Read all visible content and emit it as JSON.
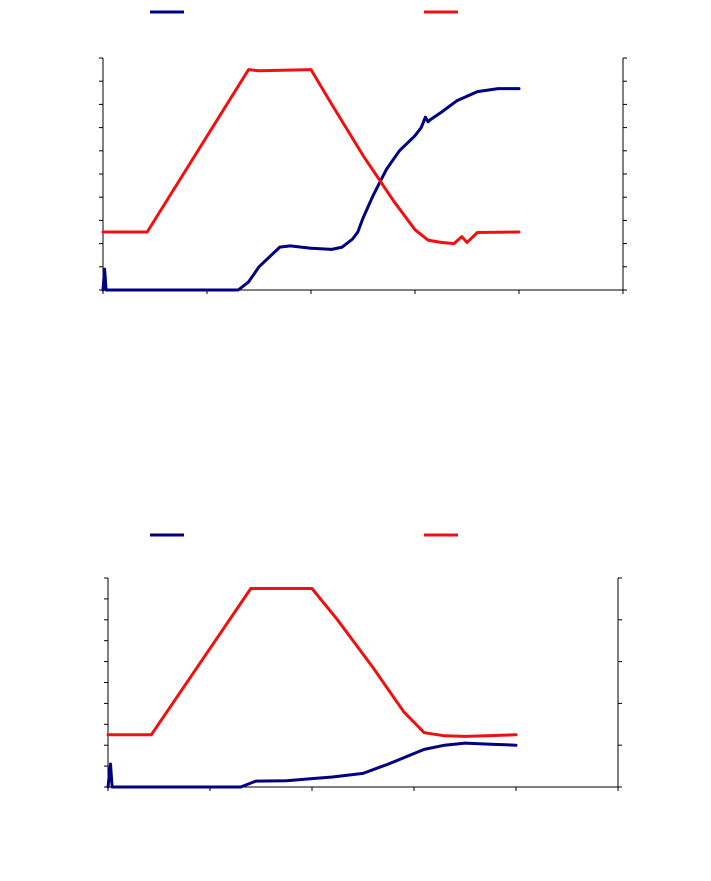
{
  "colors": {
    "blue": "#000080",
    "red": "#ee1111"
  },
  "chart_data": [
    {
      "type": "line",
      "legend_placement": "top",
      "grid": false,
      "xlim": [
        0,
        1
      ],
      "ylim_left": [
        0,
        100
      ],
      "ylim_right": [
        0,
        100
      ],
      "left_ticks": 10,
      "right_ticks": 10,
      "x_ticks": 5,
      "series": [
        {
          "color": "#000080",
          "axis": "left",
          "x": [
            0,
            0.003,
            0.006,
            0.01,
            0.1,
            0.2,
            0.26,
            0.28,
            0.3,
            0.34,
            0.36,
            0.4,
            0.44,
            0.46,
            0.48,
            0.49,
            0.5,
            0.52,
            0.545,
            0.57,
            0.6,
            0.612,
            0.62,
            0.625,
            0.63,
            0.65,
            0.68,
            0.72,
            0.76,
            0.8
          ],
          "y": [
            0,
            9,
            0,
            0,
            0,
            0,
            0,
            3.5,
            10,
            18.5,
            19,
            18,
            17.5,
            18.5,
            22,
            25,
            31,
            41,
            52,
            60,
            66.5,
            70,
            74.5,
            72.5,
            73.5,
            76.5,
            81.5,
            85.5,
            86.8,
            86.8
          ]
        },
        {
          "color": "#ee1111",
          "axis": "right",
          "x": [
            0,
            0.085,
            0.28,
            0.3,
            0.4,
            0.44,
            0.5,
            0.56,
            0.6,
            0.625,
            0.65,
            0.675,
            0.69,
            0.7,
            0.72,
            0.8
          ],
          "y": [
            25,
            25,
            95,
            94.5,
            95,
            80,
            58,
            38,
            26,
            21.5,
            20.5,
            20,
            23,
            20.5,
            24.8,
            25
          ]
        }
      ]
    },
    {
      "type": "line",
      "legend_placement": "top",
      "grid": false,
      "xlim": [
        0,
        1
      ],
      "ylim_left": [
        0,
        100
      ],
      "ylim_right": [
        0,
        100
      ],
      "left_ticks": 10,
      "right_ticks": 5,
      "x_ticks": 5,
      "series": [
        {
          "color": "#000080",
          "axis": "left",
          "x": [
            0,
            0.005,
            0.008,
            0.012,
            0.1,
            0.2,
            0.26,
            0.29,
            0.35,
            0.4,
            0.44,
            0.5,
            0.55,
            0.59,
            0.62,
            0.66,
            0.7,
            0.75,
            0.8
          ],
          "y": [
            0,
            11,
            0,
            0,
            0,
            0,
            0,
            2.8,
            3,
            4,
            4.8,
            6.5,
            11,
            15,
            18,
            20,
            21,
            20.5,
            20
          ]
        },
        {
          "color": "#ee1111",
          "axis": "right",
          "x": [
            0,
            0.085,
            0.28,
            0.4,
            0.45,
            0.52,
            0.58,
            0.62,
            0.66,
            0.7,
            0.75,
            0.8
          ],
          "y": [
            25,
            25,
            95,
            95,
            80,
            57,
            36,
            26,
            24.5,
            24.2,
            24.6,
            25
          ]
        }
      ]
    }
  ]
}
